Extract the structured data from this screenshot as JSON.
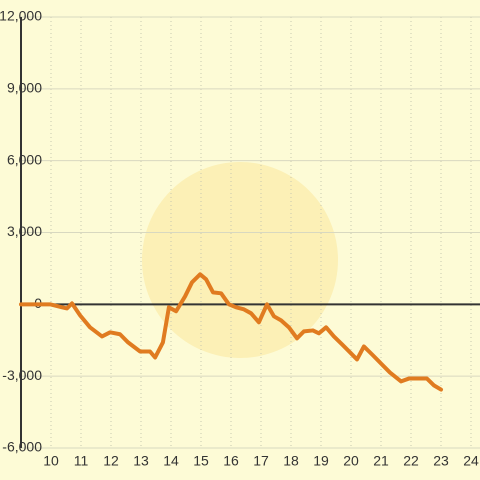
{
  "chart_data": {
    "type": "line",
    "x": [
      9,
      9.97,
      10.37,
      10.53,
      10.7,
      10.97,
      11.3,
      11.7,
      11.97,
      12.3,
      12.57,
      12.97,
      13.3,
      13.47,
      13.73,
      13.93,
      14.17,
      14.47,
      14.7,
      14.97,
      15.17,
      15.4,
      15.67,
      15.93,
      16.17,
      16.43,
      16.67,
      16.93,
      17.2,
      17.43,
      17.67,
      17.93,
      18.2,
      18.43,
      18.73,
      18.93,
      19.17,
      19.43,
      19.7,
      19.97,
      20.2,
      20.43,
      20.7,
      21,
      21.3,
      21.67,
      21.93,
      22.23,
      22.53,
      22.77,
      23
    ],
    "series": [
      {
        "color": "#e07b20",
        "values": [
          0,
          0,
          -125,
          -170,
          40,
          -460,
          -960,
          -1340,
          -1170,
          -1250,
          -1590,
          -1970,
          -1970,
          -2220,
          -1590,
          -125,
          -290,
          335,
          920,
          1255,
          1045,
          500,
          460,
          0,
          -125,
          -210,
          -375,
          -750,
          0,
          -500,
          -670,
          -960,
          -1420,
          -1130,
          -1090,
          -1210,
          -960,
          -1340,
          -1670,
          -2010,
          -2300,
          -1760,
          -2090,
          -2470,
          -2850,
          -3220,
          -3100,
          -3100,
          -3100,
          -3390,
          -3560
        ]
      }
    ],
    "xlim": [
      9,
      24.3
    ],
    "xticks": [
      10,
      11,
      12,
      13,
      14,
      15,
      16,
      17,
      18,
      19,
      20,
      21,
      22,
      23,
      24
    ],
    "ylim": [
      -6000,
      12000
    ],
    "yticks": [
      {
        "value": 12000,
        "label": "12,000"
      },
      {
        "value": 9000,
        "label": "9,000"
      },
      {
        "value": 6000,
        "label": "6,000"
      },
      {
        "value": 3000,
        "label": "3,000"
      },
      0,
      {
        "value": -3000,
        "label": "-3,000"
      },
      {
        "value": -6000,
        "label": "-6,000"
      }
    ],
    "grid": true
  }
}
